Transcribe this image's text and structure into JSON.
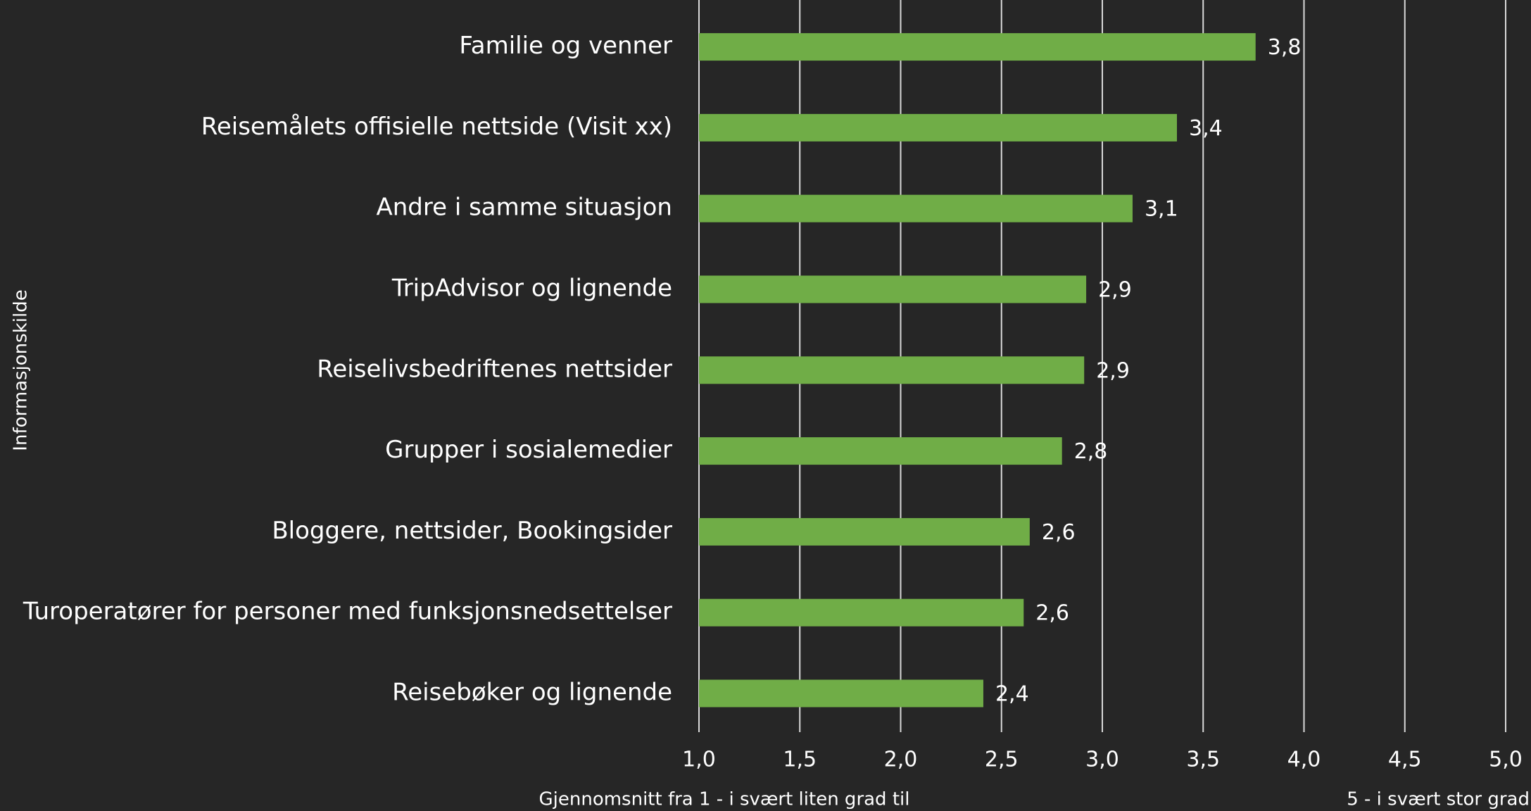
{
  "chart_data": {
    "type": "bar",
    "orientation": "horizontal",
    "categories": [
      "Familie og venner",
      "Reisemålets offisielle nettside (Visit xx)",
      "Andre i samme situasjon",
      "TripAdvisor og lignende",
      "Reiselivsbedriftenes nettsider",
      "Grupper i sosialemedier",
      "Bloggere, nettsider, Bookingsider",
      "Turoperatører for personer med funksjonsnedsettelser",
      "Reisebøker og lignende"
    ],
    "values": [
      3.76,
      3.37,
      3.15,
      2.92,
      2.91,
      2.8,
      2.64,
      2.61,
      2.41
    ],
    "value_labels": [
      "3,8",
      "3,4",
      "3,1",
      "2,9",
      "2,9",
      "2,8",
      "2,6",
      "2,6",
      "2,4"
    ],
    "color": "#70ad47",
    "xlim": [
      1,
      5
    ],
    "xticks": [
      {
        "value": 1,
        "label": "1,0"
      },
      {
        "value": 1.5,
        "label": "1,5"
      },
      {
        "value": 2,
        "label": "2,0"
      },
      {
        "value": 2.5,
        "label": "2,5"
      },
      {
        "value": 3,
        "label": "3,0"
      },
      {
        "value": 3.5,
        "label": "3,5"
      },
      {
        "value": 4,
        "label": "4,0"
      },
      {
        "value": 4.5,
        "label": "4,5"
      },
      {
        "value": 5,
        "label": "5,0"
      }
    ],
    "grid": true,
    "xlabel_left": "Gjennomsnitt fra 1 - i svært liten grad til",
    "xlabel_right": "5 - i svært stor grad",
    "ylabel": "Informasjonskilde"
  }
}
